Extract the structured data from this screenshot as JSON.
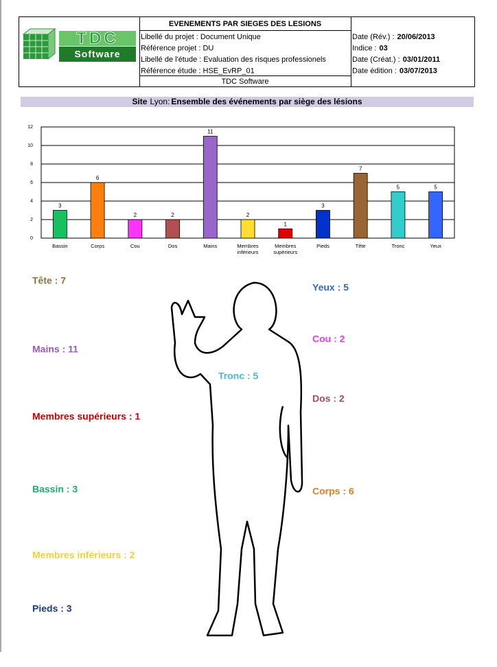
{
  "header": {
    "logo": {
      "brand": "TDC",
      "sub": "Software"
    },
    "title": "EVENEMENTS PAR SIEGES DES LESIONS",
    "lines": [
      "Libellé du projet : Document Unique",
      "Référence projet : DU",
      "Libellé de l'étude : Evaluation des risques professionels",
      "Référence étude : HSE_EvRP_01"
    ],
    "footer": "TDC Software",
    "dates": [
      {
        "label": "Date (Rév.) :",
        "value": "20/06/2013"
      },
      {
        "label": "Indice :",
        "value": "03"
      },
      {
        "label": "Date (Créat.) :",
        "value": "03/01/2011"
      },
      {
        "label": "Date édition :",
        "value": "03/07/2013"
      }
    ]
  },
  "section": {
    "site_label": "Site",
    "site": "Lyon:",
    "text": "Ensemble des événements par siège des lésions"
  },
  "chart_data": {
    "type": "bar",
    "categories": [
      "Bassin",
      "Corps",
      "Cou",
      "Dos",
      "Mains",
      "Membres inférieurs",
      "Membres supérieurs",
      "Pieds",
      "Tête",
      "Tronc",
      "Yeux"
    ],
    "values": [
      3,
      6,
      2,
      2,
      11,
      2,
      1,
      3,
      7,
      5,
      5
    ],
    "colors": [
      "#19c060",
      "#ff7f0e",
      "#ff33ff",
      "#b05050",
      "#9966cc",
      "#ffdd33",
      "#e00000",
      "#0033cc",
      "#996633",
      "#33cccc",
      "#3366ff"
    ],
    "ylim": [
      0,
      12
    ],
    "yticks": [
      0,
      2,
      4,
      6,
      8,
      10,
      12
    ],
    "grid": true
  },
  "body_labels": [
    {
      "text": "Tête : 7",
      "color": "#8b7340"
    },
    {
      "text": "Mains : 11",
      "color": "#9b59b6"
    },
    {
      "text": "Membres supérieurs : 1",
      "color": "#cc0000"
    },
    {
      "text": "Bassin : 3",
      "color": "#1fae6a"
    },
    {
      "text": "Membres inférieurs : 2",
      "color": "#f0d040"
    },
    {
      "text": "Pieds : 3",
      "color": "#1a3a8a"
    },
    {
      "text": "Yeux : 5",
      "color": "#3a6ab0"
    },
    {
      "text": "Cou : 2",
      "color": "#e040e0"
    },
    {
      "text": "Tronc : 5",
      "color": "#40c0d0"
    },
    {
      "text": "Dos : 2",
      "color": "#a05050"
    },
    {
      "text": "Corps : 6",
      "color": "#e08020"
    }
  ]
}
